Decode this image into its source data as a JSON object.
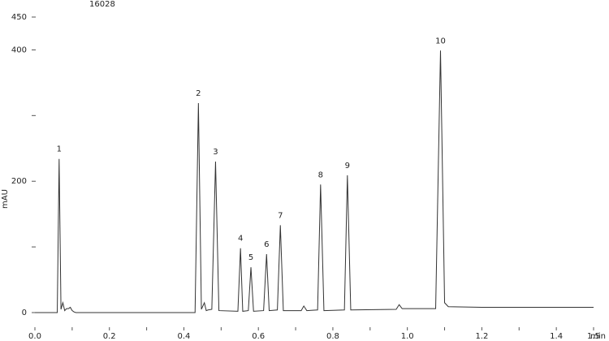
{
  "chart_data": {
    "type": "line",
    "title": "16028",
    "y_label": "mAU",
    "x_label": "min",
    "x": [
      0,
      0.06,
      0.065,
      0.07,
      0.075,
      0.08,
      0.085,
      0.09,
      0.095,
      0.1,
      0.105,
      0.11,
      0.12,
      0.43,
      0.439,
      0.447,
      0.455,
      0.46,
      0.465,
      0.475,
      0.485,
      0.494,
      0.545,
      0.552,
      0.558,
      0.573,
      0.58,
      0.587,
      0.614,
      0.622,
      0.629,
      0.651,
      0.659,
      0.667,
      0.715,
      0.722,
      0.73,
      0.759,
      0.767,
      0.776,
      0.831,
      0.839,
      0.848,
      0.97,
      0.978,
      0.986,
      1.076,
      1.089,
      1.1,
      1.11,
      1.2,
      1.5
    ],
    "series": [
      {
        "color": "#333333",
        "values": [
          0,
          0,
          234,
          5,
          15,
          3,
          6,
          6,
          8,
          3,
          1,
          0,
          0,
          0,
          319,
          5,
          15,
          3,
          4,
          5,
          230,
          3,
          2,
          98,
          2,
          3,
          69,
          2,
          3,
          89,
          3,
          4,
          133,
          3,
          3,
          10,
          3,
          4,
          195,
          3,
          4,
          209,
          4,
          5,
          12,
          6,
          6,
          399,
          15,
          9,
          8,
          8
        ]
      }
    ],
    "peaks": [
      {
        "label": "1",
        "x": 0.065,
        "y": 234
      },
      {
        "label": "2",
        "x": 0.439,
        "y": 319
      },
      {
        "label": "3",
        "x": 0.485,
        "y": 230
      },
      {
        "label": "4",
        "x": 0.552,
        "y": 98
      },
      {
        "label": "5",
        "x": 0.58,
        "y": 69
      },
      {
        "label": "6",
        "x": 0.622,
        "y": 89
      },
      {
        "label": "7",
        "x": 0.659,
        "y": 133
      },
      {
        "label": "8",
        "x": 0.767,
        "y": 195
      },
      {
        "label": "9",
        "x": 0.839,
        "y": 209
      },
      {
        "label": "10",
        "x": 1.089,
        "y": 399
      }
    ],
    "xlim": [
      0,
      1.5
    ],
    "xticks": [
      {
        "value": 0,
        "label": "0.0"
      },
      0.2,
      0.4,
      0.6,
      0.8,
      {
        "value": 1,
        "label": "1.0"
      },
      1.2,
      1.4,
      1.5
    ],
    "xminorticks": [
      0.1,
      0.3,
      0.5,
      0.7,
      0.9,
      1.1,
      1.3
    ],
    "ylim": [
      0,
      450
    ],
    "yticks": [
      0,
      200,
      400,
      450
    ],
    "yminorticks": [
      100,
      300
    ]
  }
}
